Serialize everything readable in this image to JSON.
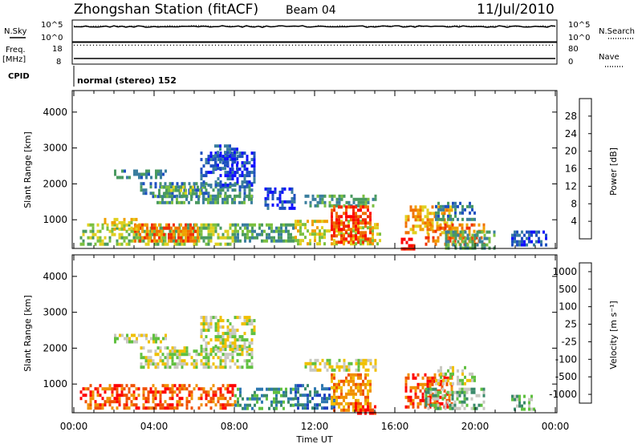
{
  "header": {
    "station": "Zhongshan Station (fitACF)",
    "beam": "Beam 04",
    "date": "11/Jul/2010"
  },
  "left_labels": {
    "nsky": "N.Sky",
    "freq": "Freq.",
    "mhz": "[MHz]",
    "cpid": "CPID"
  },
  "right_labels": {
    "nsearch": "N.Search",
    "nave": "Nave"
  },
  "cpid_text": "normal (stereo) 152",
  "chart_data": [
    {
      "type": "line",
      "name": "noise panel",
      "left_ticks": [
        "10^5",
        "10^0"
      ],
      "right_ticks": [
        "10^5",
        "10^0"
      ],
      "series": [
        {
          "name": "N.Sky",
          "style": "solid",
          "level": 0.7
        },
        {
          "name": "N.Search",
          "style": "dotted",
          "level": 0.72
        }
      ]
    },
    {
      "type": "line",
      "name": "frequency panel",
      "left_ticks": [
        "18",
        "8"
      ],
      "right_ticks": [
        "80",
        "0"
      ],
      "series": [
        {
          "name": "Freq.",
          "style": "solid",
          "value": 10
        },
        {
          "name": "Nave",
          "style": "dotted",
          "value": 70
        }
      ]
    },
    {
      "type": "heatmap",
      "name": "power",
      "ylabel": "Slant Range [km]",
      "ylim": [
        200,
        4600
      ],
      "yticks": [
        "1000",
        "2000",
        "3000",
        "4000"
      ],
      "xlim": [
        0,
        24
      ],
      "colorbar_label": "Power [dB]",
      "colorbar_ticks": [
        "4",
        "8",
        "12",
        "16",
        "20",
        "24",
        "28"
      ],
      "colors": [
        "#1010ff",
        "#1e50c0",
        "#3a7e9e",
        "#4a9a60",
        "#7cc040",
        "#e0d020",
        "#f0a000",
        "#f07000",
        "#f03000",
        "#ff0000"
      ],
      "blobs": [
        {
          "t0": 2.0,
          "t1": 4.6,
          "r0": 2200,
          "r1": 2400,
          "lvl": 2
        },
        {
          "t0": 3.3,
          "t1": 8.9,
          "r0": 1650,
          "r1": 2050,
          "lvl": 2
        },
        {
          "t0": 4.2,
          "t1": 6.5,
          "r0": 1700,
          "r1": 1950,
          "lvl": 4
        },
        {
          "t0": 4.0,
          "t1": 8.9,
          "r0": 1450,
          "r1": 1700,
          "lvl": 3
        },
        {
          "t0": 6.3,
          "t1": 9.0,
          "r0": 2000,
          "r1": 2900,
          "lvl": 1
        },
        {
          "t0": 7.0,
          "t1": 8.2,
          "r0": 2400,
          "r1": 3100,
          "lvl": 1
        },
        {
          "t0": 0.3,
          "t1": 8.0,
          "r0": 350,
          "r1": 900,
          "lvl": 4
        },
        {
          "t0": 3.0,
          "t1": 6.2,
          "r0": 450,
          "r1": 900,
          "lvl": 7
        },
        {
          "t0": 1.5,
          "t1": 3.3,
          "r0": 700,
          "r1": 1050,
          "lvl": 5
        },
        {
          "t0": 8.0,
          "t1": 11.0,
          "r0": 400,
          "r1": 900,
          "lvl": 3
        },
        {
          "t0": 11.5,
          "t1": 15.0,
          "r0": 1350,
          "r1": 1700,
          "lvl": 3
        },
        {
          "t0": 11.0,
          "t1": 15.3,
          "r0": 300,
          "r1": 1000,
          "lvl": 5
        },
        {
          "t0": 12.8,
          "t1": 14.8,
          "r0": 350,
          "r1": 1400,
          "lvl": 8
        },
        {
          "t0": 9.5,
          "t1": 11.0,
          "r0": 1300,
          "r1": 1900,
          "lvl": 1
        },
        {
          "t0": 16.5,
          "t1": 18.8,
          "r0": 600,
          "r1": 1400,
          "lvl": 6
        },
        {
          "t0": 16.3,
          "t1": 17.0,
          "r0": 200,
          "r1": 500,
          "lvl": 9
        },
        {
          "t0": 17.5,
          "t1": 20.5,
          "r0": 300,
          "r1": 900,
          "lvl": 7
        },
        {
          "t0": 18.5,
          "t1": 21.0,
          "r0": 250,
          "r1": 700,
          "lvl": 3
        },
        {
          "t0": 18.0,
          "t1": 20.0,
          "r0": 1000,
          "r1": 1500,
          "lvl": 2
        },
        {
          "t0": 21.8,
          "t1": 23.5,
          "r0": 300,
          "r1": 700,
          "lvl": 1
        }
      ]
    },
    {
      "type": "heatmap",
      "name": "velocity",
      "ylabel": "Slant Range [km]",
      "ylim": [
        200,
        4600
      ],
      "yticks": [
        "1000",
        "2000",
        "3000",
        "4000"
      ],
      "xlabel": "Time UT",
      "xlim": [
        0,
        24
      ],
      "xticks": [
        "00:00",
        "04:00",
        "08:00",
        "12:00",
        "16:00",
        "20:00",
        "00:00"
      ],
      "colorbar_label": "Velocity [m s⁻¹]",
      "colorbar_ticks": [
        "1000",
        "500",
        "100",
        "25",
        "-25",
        "-100",
        "-500",
        "-1000"
      ],
      "colors": [
        "#2040c0",
        "#2e78b0",
        "#3a8a6a",
        "#60c040",
        "#c8c8c0",
        "#f0c000",
        "#f09000",
        "#f05000",
        "#ff0000"
      ],
      "blobs": [
        {
          "t0": 2.0,
          "t1": 4.6,
          "r0": 2200,
          "r1": 2400,
          "lvl": 4
        },
        {
          "t0": 3.3,
          "t1": 8.9,
          "r0": 1450,
          "r1": 2050,
          "lvl": 4
        },
        {
          "t0": 6.3,
          "t1": 9.0,
          "r0": 2000,
          "r1": 2900,
          "lvl": 4
        },
        {
          "t0": 0.3,
          "t1": 8.0,
          "r0": 350,
          "r1": 1000,
          "lvl": 7
        },
        {
          "t0": 8.0,
          "t1": 11.0,
          "r0": 300,
          "r1": 900,
          "lvl": 2
        },
        {
          "t0": 11.0,
          "t1": 13.0,
          "r0": 300,
          "r1": 1000,
          "lvl": 1
        },
        {
          "t0": 12.8,
          "t1": 14.8,
          "r0": 300,
          "r1": 1300,
          "lvl": 6
        },
        {
          "t0": 11.5,
          "t1": 15.0,
          "r0": 1350,
          "r1": 1700,
          "lvl": 4
        },
        {
          "t0": 16.5,
          "t1": 18.8,
          "r0": 400,
          "r1": 1300,
          "lvl": 7
        },
        {
          "t0": 17.5,
          "t1": 20.5,
          "r0": 300,
          "r1": 900,
          "lvl": 3
        },
        {
          "t0": 18.0,
          "t1": 20.0,
          "r0": 1000,
          "r1": 1500,
          "lvl": 4
        },
        {
          "t0": 21.8,
          "t1": 23.0,
          "r0": 300,
          "r1": 700,
          "lvl": 3
        },
        {
          "t0": 14.0,
          "t1": 15.0,
          "r0": 200,
          "r1": 500,
          "lvl": 8
        }
      ]
    }
  ]
}
